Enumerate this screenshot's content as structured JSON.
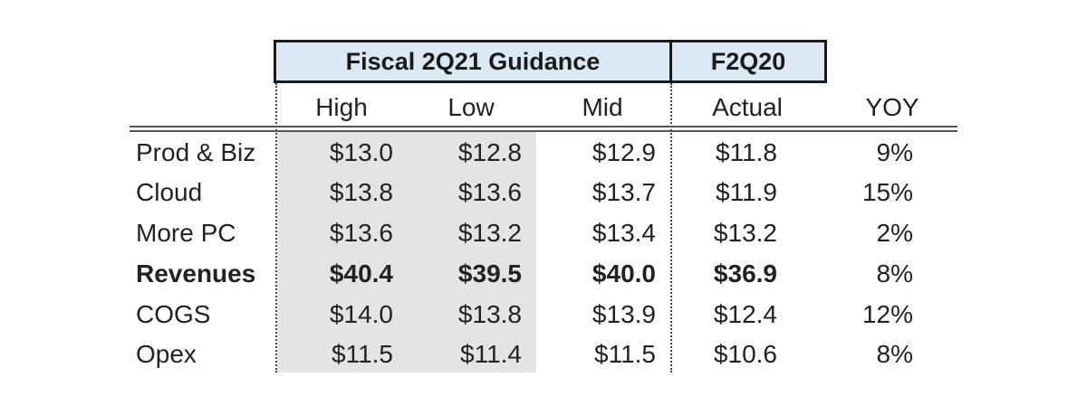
{
  "header": {
    "guidance_title": "Fiscal 2Q21 Guidance",
    "prior_title": "F2Q20"
  },
  "columns": [
    "High",
    "Low",
    "Mid",
    "Actual",
    "YOY"
  ],
  "rows": [
    {
      "label": "Prod & Biz",
      "high": "$13.0",
      "low": "$12.8",
      "mid": "$12.9",
      "actual": "$11.8",
      "yoy": "9%"
    },
    {
      "label": "Cloud",
      "high": "$13.8",
      "low": "$13.6",
      "mid": "$13.7",
      "actual": "$11.9",
      "yoy": "15%"
    },
    {
      "label": "More PC",
      "high": "$13.6",
      "low": "$13.2",
      "mid": "$13.4",
      "actual": "$13.2",
      "yoy": "2%"
    },
    {
      "label": "Revenues",
      "high": "$40.4",
      "low": "$39.5",
      "mid": "$40.0",
      "actual": "$36.9",
      "yoy": "8%"
    },
    {
      "label": "COGS",
      "high": "$14.0",
      "low": "$13.8",
      "mid": "$13.9",
      "actual": "$12.4",
      "yoy": "12%"
    },
    {
      "label": "Opex",
      "high": "$11.5",
      "low": "$11.4",
      "mid": "$11.5",
      "actual": "$10.6",
      "yoy": "8%"
    }
  ],
  "colors": {
    "header_fill": "#dbe9f5",
    "shade_fill": "#e4e4e4"
  }
}
